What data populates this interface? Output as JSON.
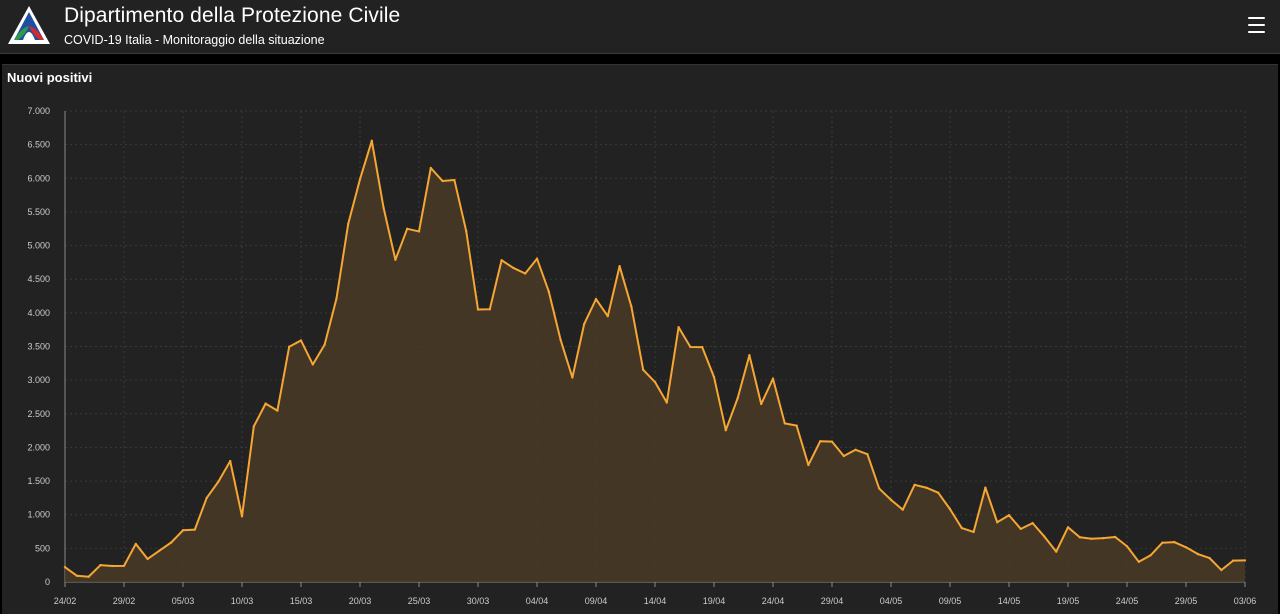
{
  "header": {
    "title": "Dipartimento della Protezione Civile",
    "subtitle": "COVID-19 Italia - Monitoraggio della situazione",
    "logo_icon": "protezione-civile-logo-icon",
    "menu_icon": "hamburger-menu-icon"
  },
  "panel": {
    "title": "Nuovi positivi"
  },
  "colors": {
    "line": "#f6a633",
    "area": "#4a3a24",
    "background": "#222222",
    "grid": "#3a3a3a",
    "tick_text": "#cccccc"
  },
  "chart_data": {
    "type": "area",
    "title": "Nuovi positivi",
    "xlabel": "",
    "ylabel": "",
    "ylim": [
      0,
      7000
    ],
    "grid": true,
    "y_ticks": [
      0,
      500,
      1000,
      1500,
      2000,
      2500,
      3000,
      3500,
      4000,
      4500,
      5000,
      5500,
      6000,
      6500,
      7000
    ],
    "y_tick_labels": [
      "0",
      "500",
      "1.000",
      "1.500",
      "2.000",
      "2.500",
      "3.000",
      "3.500",
      "4.000",
      "4.500",
      "5.000",
      "5.500",
      "6.000",
      "6.500",
      "7.000"
    ],
    "x_tick_labels": [
      "24/02",
      "29/02",
      "05/03",
      "10/03",
      "15/03",
      "20/03",
      "25/03",
      "30/03",
      "04/04",
      "09/04",
      "14/04",
      "19/04",
      "24/04",
      "29/04",
      "04/05",
      "09/05",
      "14/05",
      "19/05",
      "24/05",
      "29/05",
      "03/06"
    ],
    "x_tick_interval_days": 5,
    "first_date": "24/02",
    "last_date": "03/06",
    "values": [
      221,
      93,
      78,
      250,
      238,
      240,
      566,
      342,
      466,
      587,
      769,
      778,
      1247,
      1492,
      1797,
      977,
      2313,
      2651,
      2547,
      3497,
      3590,
      3233,
      3526,
      4207,
      5322,
      5986,
      6557,
      5560,
      4789,
      5249,
      5210,
      6153,
      5959,
      5974,
      5217,
      4050,
      4053,
      4782,
      4668,
      4585,
      4805,
      4316,
      3599,
      3039,
      3836,
      4204,
      3951,
      4694,
      4092,
      3153,
      2972,
      2667,
      3786,
      3493,
      3491,
      3047,
      2256,
      2729,
      3370,
      2646,
      3021,
      2357,
      2324,
      1739,
      2091,
      2086,
      1872,
      1965,
      1900,
      1389,
      1221,
      1075,
      1444,
      1401,
      1327,
      1083,
      802,
      744,
      1402,
      888,
      992,
      789,
      875,
      675,
      451,
      813,
      665,
      642,
      652,
      669,
      531,
      300,
      397,
      584,
      593,
      516,
      416,
      355,
      178,
      318,
      321
    ]
  }
}
